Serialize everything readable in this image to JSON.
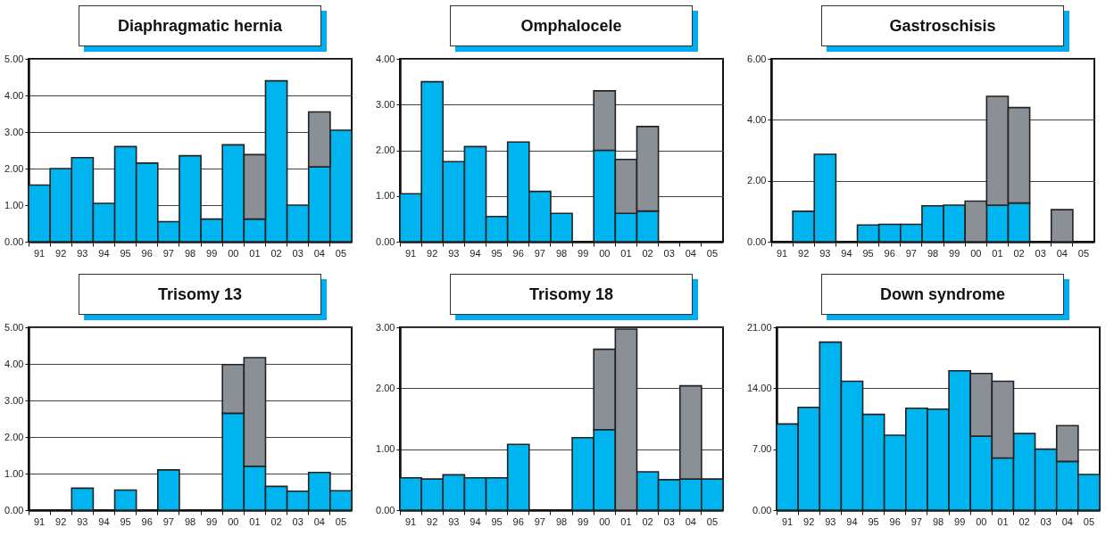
{
  "chart_data": [
    {
      "type": "bar",
      "title": "Diaphragmatic hernia",
      "stacked": true,
      "grid": "y",
      "categories": [
        "91",
        "92",
        "93",
        "94",
        "95",
        "96",
        "97",
        "98",
        "99",
        "00",
        "01",
        "02",
        "03",
        "04",
        "05"
      ],
      "ylim": [
        0,
        5
      ],
      "yticks": [
        {
          "value": 0,
          "label": "0.00"
        },
        {
          "value": 1,
          "label": "1.00"
        },
        {
          "value": 2,
          "label": "2.00"
        },
        {
          "value": 3,
          "label": "3.00"
        },
        {
          "value": 4,
          "label": "4.00"
        },
        {
          "value": 5,
          "label": "5.00"
        }
      ],
      "series": [
        {
          "color": "#00b4ef",
          "values": [
            1.55,
            2.0,
            2.3,
            1.05,
            2.6,
            2.15,
            0.55,
            2.35,
            0.62,
            2.65,
            0.62,
            4.4,
            1.0,
            2.05,
            3.05
          ]
        },
        {
          "color": "#8a9096",
          "values": [
            0,
            0,
            0,
            0,
            0,
            0,
            0,
            0,
            0,
            0,
            1.76,
            0,
            0,
            1.5,
            0
          ]
        }
      ]
    },
    {
      "type": "bar",
      "title": "Omphalocele",
      "stacked": true,
      "grid": "y",
      "categories": [
        "91",
        "92",
        "93",
        "94",
        "95",
        "96",
        "97",
        "98",
        "99",
        "00",
        "01",
        "02",
        "03",
        "04",
        "05"
      ],
      "ylim": [
        0,
        4
      ],
      "yticks": [
        {
          "value": 0,
          "label": "0.00"
        },
        {
          "value": 1,
          "label": "1.00"
        },
        {
          "value": 2,
          "label": "2.00"
        },
        {
          "value": 3,
          "label": "3.00"
        },
        {
          "value": 4,
          "label": "4.00"
        }
      ],
      "series": [
        {
          "color": "#00b4ef",
          "values": [
            1.05,
            3.5,
            1.75,
            2.08,
            0.55,
            2.18,
            1.1,
            0.62,
            0,
            2.0,
            0.62,
            0.67,
            0,
            0,
            0
          ]
        },
        {
          "color": "#8a9096",
          "values": [
            0,
            0,
            0,
            0,
            0,
            0,
            0,
            0,
            0,
            1.3,
            1.18,
            1.85,
            0,
            0,
            0
          ]
        }
      ]
    },
    {
      "type": "bar",
      "title": "Gastroschisis",
      "stacked": true,
      "grid": "y",
      "categories": [
        "91",
        "92",
        "93",
        "94",
        "95",
        "96",
        "97",
        "98",
        "99",
        "00",
        "01",
        "02",
        "03",
        "04",
        "05"
      ],
      "ylim": [
        0,
        6
      ],
      "yticks": [
        {
          "value": 0,
          "label": "0.00"
        },
        {
          "value": 2,
          "label": "2.00"
        },
        {
          "value": 4,
          "label": "4.00"
        },
        {
          "value": 6,
          "label": "6.00"
        }
      ],
      "series": [
        {
          "color": "#00b4ef",
          "values": [
            0,
            1.0,
            2.87,
            0,
            0.55,
            0.57,
            0.57,
            1.18,
            1.2,
            0,
            1.2,
            1.27,
            0,
            0,
            0
          ]
        },
        {
          "color": "#8a9096",
          "values": [
            0,
            0,
            0,
            0,
            0,
            0,
            0,
            0,
            0,
            1.33,
            3.57,
            3.13,
            0,
            1.05,
            0
          ]
        }
      ]
    },
    {
      "type": "bar",
      "title": "Trisomy 13",
      "stacked": true,
      "grid": "y",
      "categories": [
        "91",
        "92",
        "93",
        "94",
        "95",
        "96",
        "97",
        "98",
        "99",
        "00",
        "01",
        "02",
        "03",
        "04",
        "05"
      ],
      "ylim": [
        0,
        5
      ],
      "yticks": [
        {
          "value": 0,
          "label": "0.00"
        },
        {
          "value": 1,
          "label": "1.00"
        },
        {
          "value": 2,
          "label": "2.00"
        },
        {
          "value": 3,
          "label": "3.00"
        },
        {
          "value": 4,
          "label": "4.00"
        },
        {
          "value": 5,
          "label": "5.00"
        }
      ],
      "series": [
        {
          "color": "#00b4ef",
          "values": [
            0,
            0,
            0.6,
            0,
            0.55,
            0,
            1.1,
            0,
            0,
            2.65,
            1.2,
            0.65,
            0.52,
            1.03,
            0.53
          ]
        },
        {
          "color": "#8a9096",
          "values": [
            0,
            0,
            0,
            0,
            0,
            0,
            0,
            0,
            0,
            1.33,
            2.97,
            0,
            0,
            0,
            0
          ]
        }
      ]
    },
    {
      "type": "bar",
      "title": "Trisomy 18",
      "stacked": true,
      "grid": "y",
      "categories": [
        "91",
        "92",
        "93",
        "94",
        "95",
        "96",
        "97",
        "98",
        "99",
        "00",
        "01",
        "02",
        "03",
        "04",
        "05"
      ],
      "ylim": [
        0,
        3
      ],
      "yticks": [
        {
          "value": 0,
          "label": "0.00"
        },
        {
          "value": 1,
          "label": "1.00"
        },
        {
          "value": 2,
          "label": "2.00"
        },
        {
          "value": 3,
          "label": "3.00"
        }
      ],
      "series": [
        {
          "color": "#00b4ef",
          "values": [
            0.53,
            0.51,
            0.58,
            0.53,
            0.53,
            1.08,
            0,
            0,
            1.19,
            1.32,
            0,
            0.63,
            0.5,
            0.51,
            0.51
          ]
        },
        {
          "color": "#8a9096",
          "values": [
            0,
            0,
            0,
            0,
            0,
            0,
            0,
            0,
            0,
            1.32,
            2.97,
            0,
            0,
            1.53,
            0
          ]
        }
      ]
    },
    {
      "type": "bar",
      "title": "Down syndrome",
      "stacked": true,
      "grid": "y",
      "categories": [
        "91",
        "92",
        "93",
        "94",
        "95",
        "96",
        "97",
        "98",
        "99",
        "00",
        "01",
        "02",
        "03",
        "04",
        "05"
      ],
      "ylim": [
        0,
        21
      ],
      "yticks": [
        {
          "value": 0,
          "label": "0.00"
        },
        {
          "value": 7,
          "label": "7.00"
        },
        {
          "value": 14,
          "label": "14.00"
        },
        {
          "value": 21,
          "label": "21.00"
        }
      ],
      "series": [
        {
          "color": "#00b4ef",
          "values": [
            9.9,
            11.8,
            19.3,
            14.8,
            11.0,
            8.6,
            11.7,
            11.6,
            16.0,
            8.5,
            6.0,
            8.8,
            7.0,
            5.6,
            4.1
          ]
        },
        {
          "color": "#8a9096",
          "values": [
            0,
            0,
            0,
            0,
            0,
            0,
            0,
            0,
            0,
            7.2,
            8.8,
            0,
            0,
            4.1,
            0
          ]
        }
      ]
    }
  ]
}
